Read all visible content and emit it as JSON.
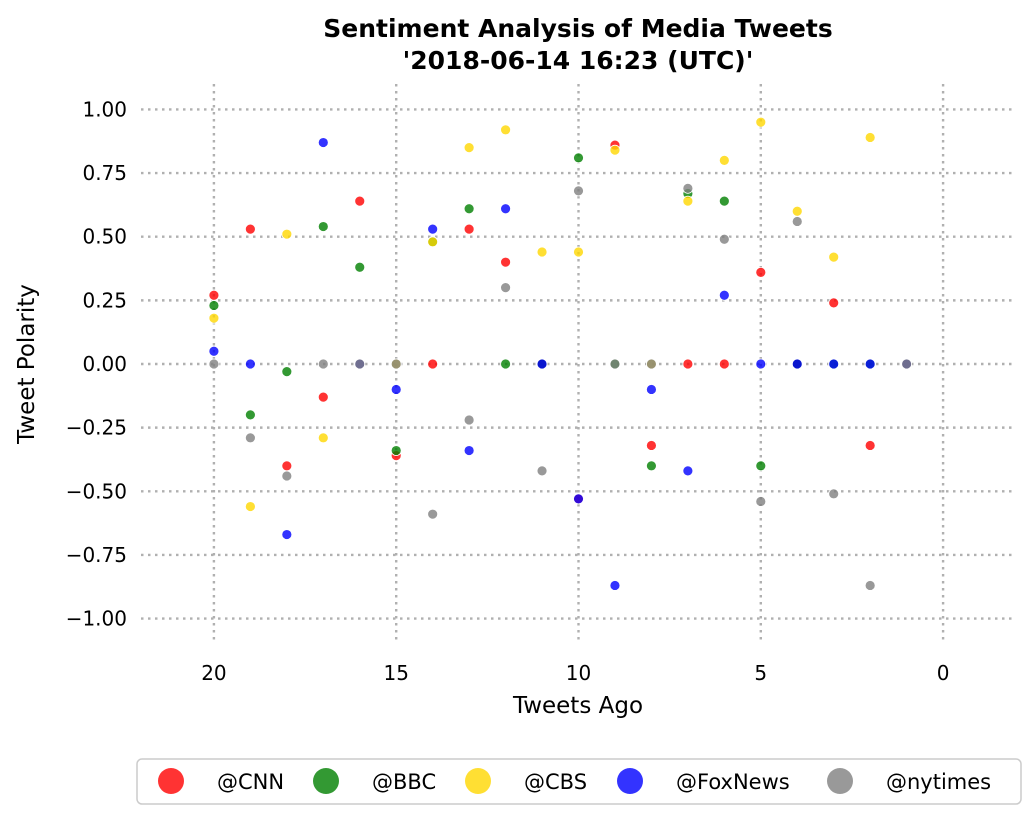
{
  "chart_data": {
    "type": "scatter",
    "title": "Sentiment Analysis of Media Tweets",
    "subtitle": "'2018-06-14 16:23 (UTC)'",
    "xlabel": "Tweets Ago",
    "ylabel": "Tweet Polarity",
    "xlim": [
      22,
      -2
    ],
    "ylim": [
      -1.1,
      1.1
    ],
    "x_ticks": [
      20,
      15,
      10,
      5,
      0
    ],
    "x_tick_labels": [
      "20",
      "15",
      "10",
      "5",
      "0"
    ],
    "y_ticks": [
      1.0,
      0.75,
      0.5,
      0.25,
      0.0,
      -0.25,
      -0.5,
      -0.75,
      -1.0
    ],
    "y_tick_labels": [
      "1.00",
      "0.75",
      "0.50",
      "0.25",
      "0.00",
      "−0.25",
      "−0.50",
      "−0.75",
      "−1.00"
    ],
    "grid": true,
    "legend_position": "bottom",
    "series": [
      {
        "name": "@CNN",
        "color": "#ff0000",
        "x": [
          20,
          19,
          18,
          17,
          16,
          15,
          14,
          13,
          12,
          11,
          10,
          9,
          8,
          7,
          6,
          5,
          4,
          3,
          2,
          1
        ],
        "y": [
          0.27,
          0.53,
          -0.4,
          -0.13,
          0.64,
          -0.36,
          0.0,
          0.53,
          0.4,
          0.0,
          -0.53,
          0.86,
          -0.32,
          0.0,
          0.0,
          0.36,
          0.0,
          0.24,
          -0.32,
          0.0
        ]
      },
      {
        "name": "@BBC",
        "color": "#008000",
        "x": [
          20,
          19,
          18,
          17,
          16,
          15,
          14,
          13,
          12,
          11,
          10,
          9,
          8,
          7,
          6,
          5,
          4,
          3,
          2,
          1
        ],
        "y": [
          0.23,
          -0.2,
          -0.03,
          0.54,
          0.38,
          -0.34,
          0.48,
          0.61,
          0.0,
          0.0,
          0.81,
          0.0,
          -0.4,
          0.67,
          0.64,
          -0.4,
          0.0,
          0.0,
          0.0,
          0.0
        ]
      },
      {
        "name": "@CBS",
        "color": "#ffd700",
        "x": [
          20,
          19,
          18,
          17,
          16,
          15,
          14,
          13,
          12,
          11,
          10,
          9,
          8,
          7,
          6,
          5,
          4,
          3,
          2,
          1
        ],
        "y": [
          0.18,
          -0.56,
          0.51,
          -0.29,
          0.0,
          0.0,
          0.48,
          0.85,
          0.92,
          0.44,
          0.44,
          0.84,
          0.0,
          0.64,
          0.8,
          0.95,
          0.6,
          0.42,
          0.89,
          0.0
        ]
      },
      {
        "name": "@FoxNews",
        "color": "#0000ff",
        "x": [
          20,
          19,
          18,
          17,
          16,
          15,
          14,
          13,
          12,
          11,
          10,
          9,
          8,
          7,
          6,
          5,
          4,
          3,
          2,
          1
        ],
        "y": [
          0.05,
          0.0,
          -0.67,
          0.87,
          0.0,
          -0.1,
          0.53,
          -0.34,
          0.61,
          0.0,
          -0.53,
          -0.87,
          -0.1,
          -0.42,
          0.27,
          0.0,
          0.0,
          0.0,
          0.0,
          0.0
        ]
      },
      {
        "name": "@nytimes",
        "color": "#808080",
        "x": [
          20,
          19,
          18,
          17,
          16,
          15,
          14,
          13,
          12,
          11,
          10,
          9,
          8,
          7,
          6,
          5,
          4,
          3,
          2,
          1
        ],
        "y": [
          0.0,
          -0.29,
          -0.44,
          0.0,
          0.0,
          0.0,
          -0.59,
          -0.22,
          0.3,
          -0.42,
          0.68,
          0.0,
          0.0,
          0.69,
          0.49,
          -0.54,
          0.56,
          -0.51,
          -0.87,
          0.0
        ]
      }
    ]
  }
}
